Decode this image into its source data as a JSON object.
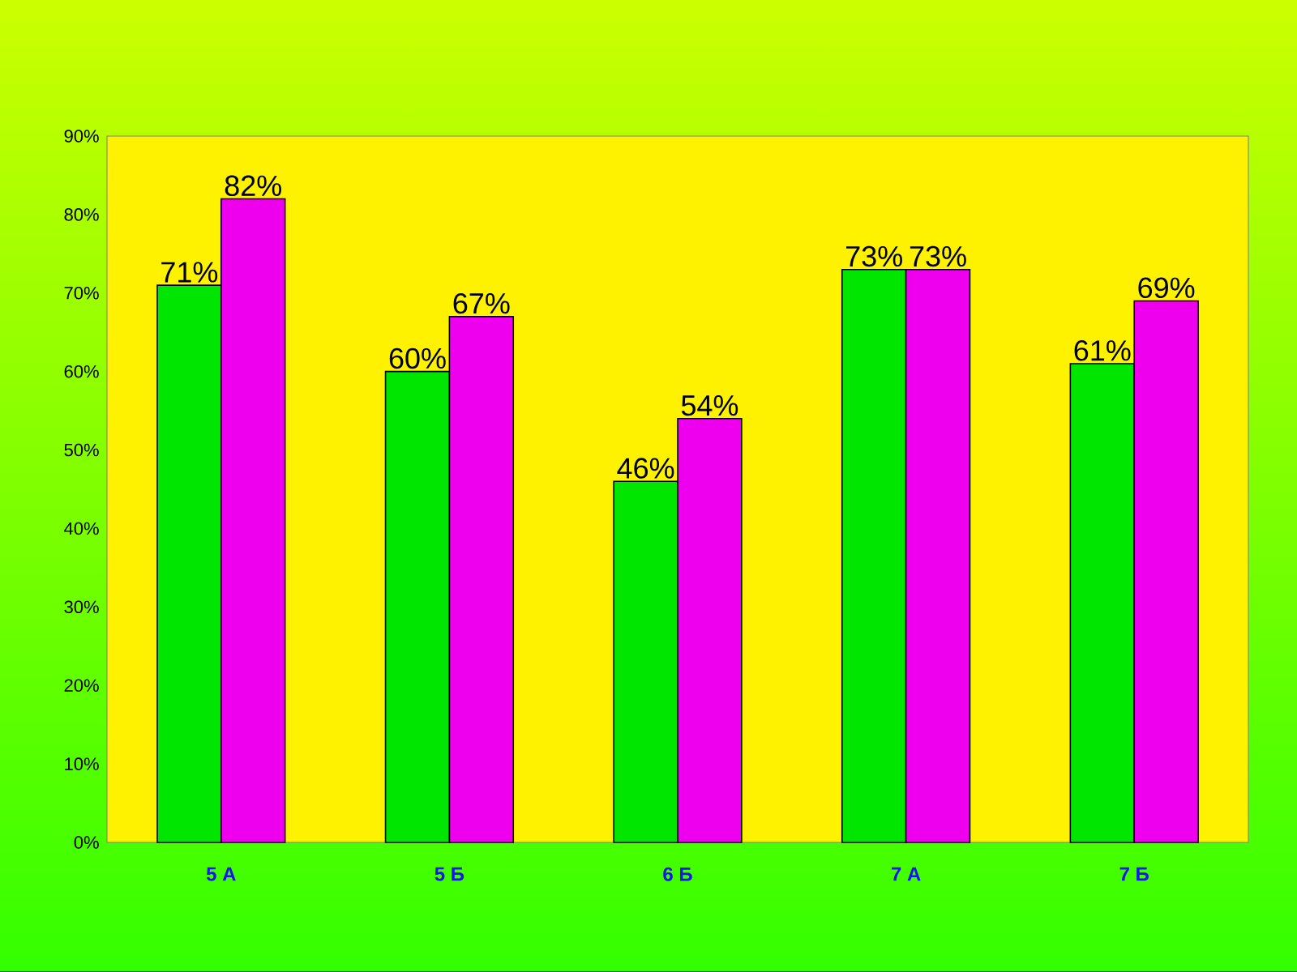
{
  "chart_data": {
    "type": "bar",
    "categories": [
      "5 А",
      "5 Б",
      "6 Б",
      "7 А",
      "7 Б"
    ],
    "series": [
      {
        "color": "#00e600",
        "values": [
          71,
          60,
          46,
          73,
          61
        ],
        "value_labels": [
          "71%",
          "60%",
          "46%",
          "73%",
          "61%"
        ]
      },
      {
        "color": "#ee00ee",
        "values": [
          82,
          67,
          54,
          73,
          69
        ],
        "value_labels": [
          "82%",
          "67%",
          "54%",
          "73%",
          "69%"
        ]
      }
    ],
    "ylim": [
      0,
      90
    ],
    "yticks": [
      {
        "value": 0,
        "label": "0%"
      },
      {
        "value": 10,
        "label": "10%"
      },
      {
        "value": 20,
        "label": "20%"
      },
      {
        "value": 30,
        "label": "30%"
      },
      {
        "value": 40,
        "label": "40%"
      },
      {
        "value": 50,
        "label": "50%"
      },
      {
        "value": 60,
        "label": "60%"
      },
      {
        "value": 70,
        "label": "70%"
      },
      {
        "value": 80,
        "label": "80%"
      },
      {
        "value": 90,
        "label": "90%"
      }
    ]
  }
}
